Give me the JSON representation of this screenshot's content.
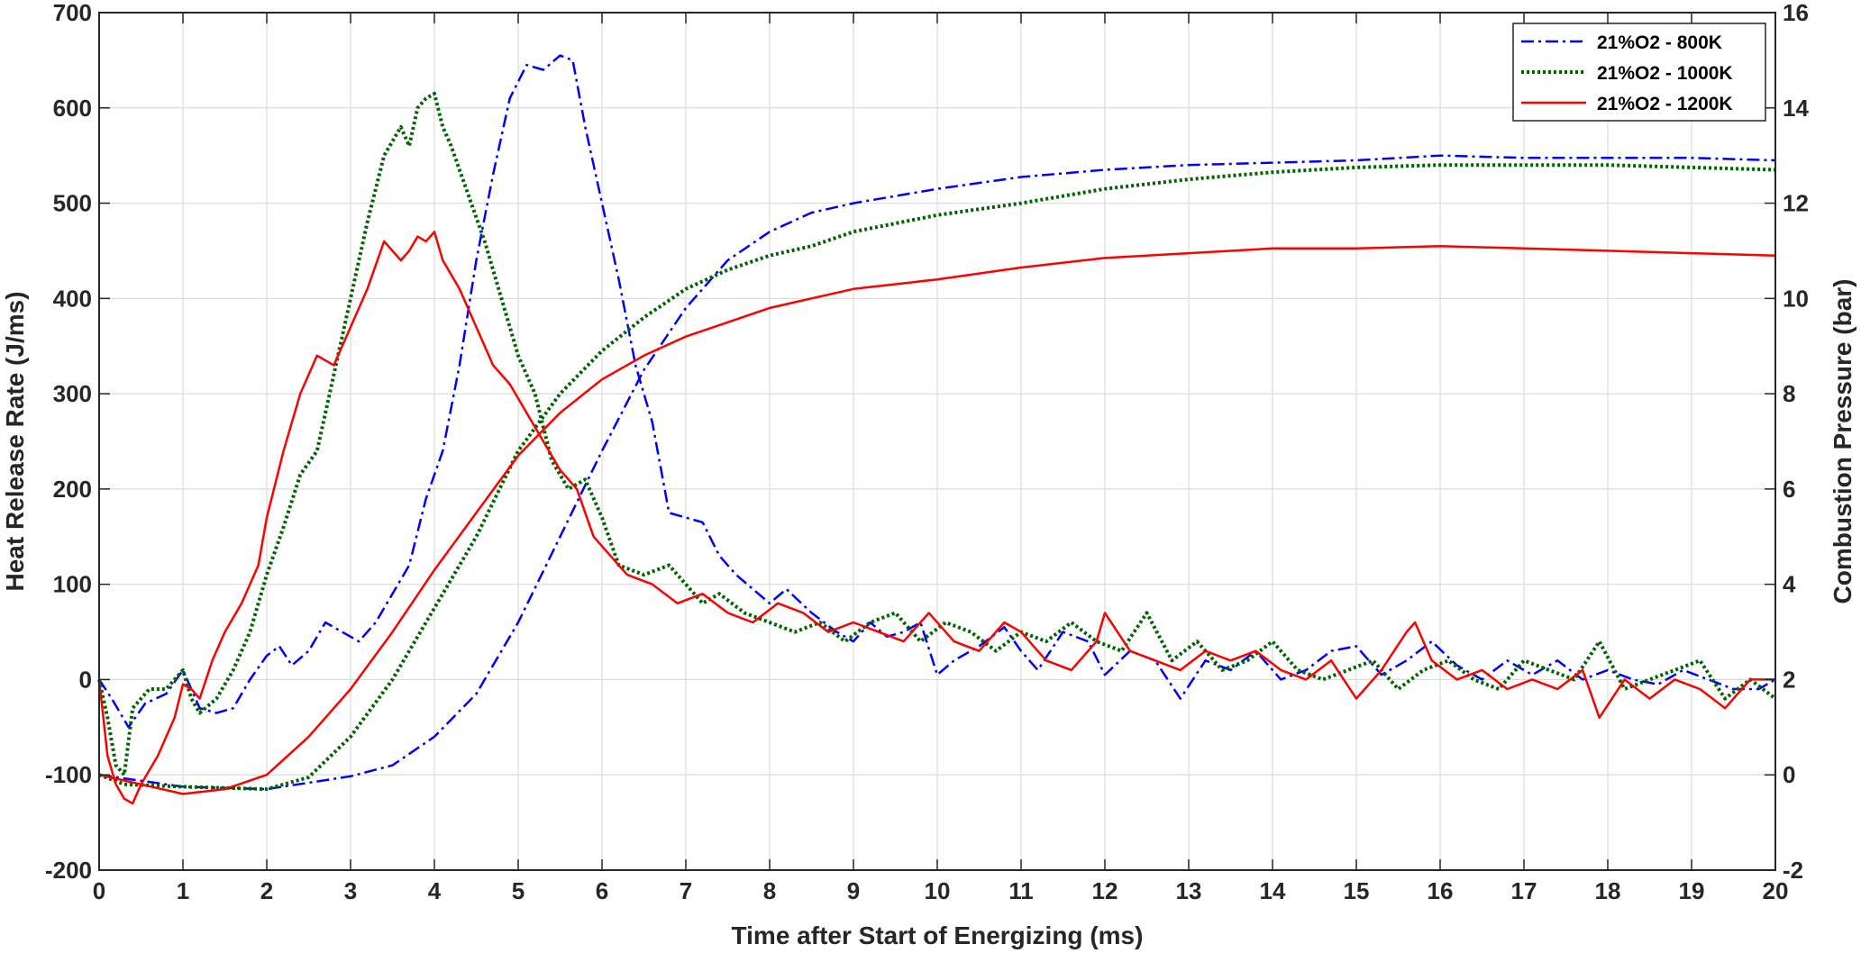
{
  "chart_data": {
    "type": "line",
    "xlabel": "Time after Start of Energizing (ms)",
    "ylabel_left": "Heat Release Rate (J/ms)",
    "ylabel_right": "Combustion Pressure (bar)",
    "xlim": [
      0,
      20
    ],
    "ylim_left": [
      -200,
      700
    ],
    "ylim_right": [
      -2,
      16
    ],
    "x_ticks": [
      0,
      1,
      2,
      3,
      4,
      5,
      6,
      7,
      8,
      9,
      10,
      11,
      12,
      13,
      14,
      15,
      16,
      17,
      18,
      19,
      20
    ],
    "y_ticks_left": [
      -200,
      -100,
      0,
      100,
      200,
      300,
      400,
      500,
      600,
      700
    ],
    "y_ticks_right": [
      -2,
      0,
      2,
      4,
      6,
      8,
      10,
      12,
      14,
      16
    ],
    "grid": true,
    "legend_position": "top-right",
    "series": [
      {
        "name": "21%O2 - 800K",
        "color": "#0000ff",
        "style": "dash-dot",
        "hrr": {
          "x": [
            0,
            0.15,
            0.35,
            0.55,
            0.8,
            1.0,
            1.2,
            1.4,
            1.6,
            1.8,
            2.0,
            2.15,
            2.3,
            2.5,
            2.7,
            2.9,
            3.1,
            3.3,
            3.5,
            3.7,
            3.9,
            4.1,
            4.3,
            4.5,
            4.7,
            4.9,
            5.1,
            5.3,
            5.5,
            5.65,
            5.8,
            6.0,
            6.2,
            6.4,
            6.6,
            6.8,
            7.0,
            7.2,
            7.4,
            7.6,
            7.8,
            8.0,
            8.2,
            8.5,
            8.8,
            9.0,
            9.2,
            9.4,
            9.6,
            9.8,
            10.0,
            10.2,
            10.5,
            10.8,
            11.0,
            11.2,
            11.5,
            11.8,
            12.0,
            12.3,
            12.6,
            12.9,
            13.2,
            13.5,
            13.8,
            14.1,
            14.4,
            14.7,
            15.0,
            15.3,
            15.6,
            15.9,
            16.2,
            16.5,
            16.8,
            17.1,
            17.4,
            17.7,
            18.0,
            18.3,
            18.6,
            18.9,
            19.2,
            19.5,
            19.8,
            20.0
          ],
          "y": [
            0,
            -20,
            -50,
            -25,
            -15,
            10,
            -30,
            -35,
            -30,
            0,
            25,
            35,
            15,
            30,
            60,
            50,
            40,
            60,
            90,
            120,
            190,
            240,
            330,
            440,
            530,
            610,
            645,
            640,
            655,
            650,
            580,
            500,
            420,
            330,
            270,
            175,
            170,
            165,
            130,
            110,
            95,
            80,
            95,
            70,
            50,
            40,
            60,
            45,
            50,
            60,
            5,
            20,
            35,
            55,
            30,
            10,
            50,
            40,
            5,
            30,
            20,
            -20,
            20,
            10,
            30,
            0,
            10,
            30,
            35,
            5,
            20,
            40,
            15,
            0,
            20,
            5,
            20,
            0,
            10,
            0,
            -5,
            10,
            0,
            -10,
            -10,
            0
          ]
        },
        "pressure": {
          "x": [
            0,
            1,
            2,
            3,
            3.5,
            4,
            4.5,
            5,
            5.5,
            6,
            6.5,
            7,
            7.5,
            8,
            8.5,
            9,
            10,
            11,
            12,
            13,
            14,
            15,
            16,
            17,
            18,
            19,
            20
          ],
          "y": [
            0,
            -0.25,
            -0.3,
            -0.03,
            0.2,
            0.8,
            1.7,
            3.2,
            5.0,
            6.8,
            8.5,
            9.8,
            10.8,
            11.4,
            11.8,
            12.0,
            12.3,
            12.55,
            12.7,
            12.8,
            12.85,
            12.9,
            13.0,
            12.95,
            12.95,
            12.95,
            12.9
          ]
        }
      },
      {
        "name": "21%O2 - 1000K",
        "color": "#006400",
        "style": "dotted",
        "hrr": {
          "x": [
            0,
            0.1,
            0.2,
            0.3,
            0.4,
            0.6,
            0.8,
            1.0,
            1.1,
            1.2,
            1.4,
            1.6,
            1.8,
            2.0,
            2.2,
            2.4,
            2.6,
            2.8,
            3.0,
            3.2,
            3.4,
            3.6,
            3.7,
            3.8,
            3.9,
            4.0,
            4.1,
            4.2,
            4.4,
            4.6,
            4.8,
            5.0,
            5.2,
            5.4,
            5.6,
            5.8,
            6.0,
            6.2,
            6.5,
            6.8,
            7.0,
            7.2,
            7.4,
            7.7,
            8.0,
            8.3,
            8.6,
            8.9,
            9.2,
            9.5,
            9.8,
            10.1,
            10.4,
            10.7,
            11.0,
            11.3,
            11.6,
            11.9,
            12.2,
            12.5,
            12.8,
            13.1,
            13.4,
            13.7,
            14.0,
            14.3,
            14.6,
            14.9,
            15.2,
            15.5,
            15.8,
            16.1,
            16.4,
            16.7,
            17.0,
            17.3,
            17.6,
            17.9,
            18.2,
            18.5,
            18.8,
            19.1,
            19.4,
            19.7,
            20.0
          ],
          "y": [
            0,
            -40,
            -90,
            -100,
            -30,
            -10,
            -10,
            10,
            -20,
            -35,
            -20,
            10,
            50,
            110,
            160,
            215,
            240,
            320,
            400,
            480,
            550,
            580,
            560,
            600,
            610,
            615,
            580,
            560,
            510,
            460,
            400,
            340,
            300,
            230,
            200,
            210,
            170,
            120,
            110,
            120,
            100,
            80,
            90,
            70,
            60,
            50,
            60,
            40,
            60,
            70,
            40,
            60,
            50,
            30,
            50,
            40,
            60,
            40,
            30,
            70,
            20,
            40,
            10,
            20,
            40,
            10,
            0,
            10,
            20,
            -10,
            10,
            20,
            0,
            -10,
            20,
            10,
            0,
            40,
            -10,
            0,
            10,
            20,
            -20,
            0,
            -20
          ]
        },
        "pressure": {
          "x": [
            0,
            0.3,
            1,
            2,
            2.5,
            3,
            3.5,
            4,
            4.5,
            5,
            5.5,
            6,
            6.5,
            7,
            7.5,
            8,
            8.5,
            9,
            10,
            11,
            12,
            13,
            14,
            15,
            16,
            17,
            18,
            19,
            20
          ],
          "y": [
            0,
            -0.2,
            -0.25,
            -0.3,
            -0.05,
            0.8,
            2.0,
            3.5,
            5.0,
            6.8,
            8.0,
            8.9,
            9.6,
            10.2,
            10.6,
            10.9,
            11.1,
            11.4,
            11.75,
            12.0,
            12.3,
            12.5,
            12.65,
            12.75,
            12.8,
            12.8,
            12.8,
            12.75,
            12.7
          ]
        }
      },
      {
        "name": "21%O2 - 1200K",
        "color": "#ff0000",
        "style": "solid",
        "hrr": {
          "x": [
            0,
            0.1,
            0.2,
            0.3,
            0.4,
            0.5,
            0.7,
            0.9,
            1.0,
            1.1,
            1.2,
            1.35,
            1.5,
            1.7,
            1.9,
            2.0,
            2.2,
            2.4,
            2.6,
            2.8,
            3.0,
            3.2,
            3.4,
            3.6,
            3.7,
            3.8,
            3.9,
            4.0,
            4.1,
            4.3,
            4.5,
            4.7,
            4.9,
            5.1,
            5.3,
            5.5,
            5.7,
            5.9,
            6.1,
            6.3,
            6.6,
            6.9,
            7.2,
            7.5,
            7.8,
            8.1,
            8.4,
            8.7,
            9.0,
            9.3,
            9.6,
            9.9,
            10.2,
            10.5,
            10.8,
            11.0,
            11.3,
            11.6,
            11.9,
            12.0,
            12.3,
            12.6,
            12.9,
            13.2,
            13.5,
            13.8,
            14.1,
            14.4,
            14.7,
            15.0,
            15.3,
            15.6,
            15.7,
            15.9,
            16.2,
            16.5,
            16.8,
            17.1,
            17.4,
            17.7,
            17.9,
            18.2,
            18.5,
            18.8,
            19.1,
            19.4,
            19.7,
            20.0
          ],
          "y": [
            0,
            -80,
            -110,
            -125,
            -130,
            -110,
            -80,
            -40,
            -5,
            -10,
            -20,
            20,
            50,
            80,
            120,
            170,
            240,
            300,
            340,
            330,
            370,
            410,
            460,
            440,
            450,
            465,
            460,
            470,
            440,
            410,
            370,
            330,
            310,
            280,
            250,
            220,
            200,
            150,
            130,
            110,
            100,
            80,
            90,
            70,
            60,
            80,
            70,
            50,
            60,
            50,
            40,
            70,
            40,
            30,
            60,
            50,
            20,
            10,
            40,
            70,
            30,
            20,
            10,
            30,
            20,
            30,
            10,
            0,
            20,
            -20,
            10,
            50,
            60,
            20,
            0,
            10,
            -10,
            0,
            -10,
            10,
            -40,
            0,
            -20,
            0,
            -10,
            -30,
            0,
            0
          ]
        },
        "pressure": {
          "x": [
            0,
            0.5,
            1,
            1.5,
            2,
            2.5,
            3,
            3.5,
            4,
            4.5,
            5,
            5.5,
            6,
            6.5,
            7,
            7.5,
            8,
            8.5,
            9,
            10,
            11,
            12,
            13,
            14,
            15,
            16,
            17,
            18,
            19,
            20
          ],
          "y": [
            0,
            -0.2,
            -0.4,
            -0.3,
            0.0,
            0.8,
            1.8,
            3.0,
            4.3,
            5.5,
            6.7,
            7.6,
            8.3,
            8.8,
            9.2,
            9.5,
            9.8,
            10.0,
            10.2,
            10.4,
            10.65,
            10.85,
            10.95,
            11.05,
            11.05,
            11.1,
            11.05,
            11.0,
            10.95,
            10.9
          ]
        }
      }
    ]
  }
}
